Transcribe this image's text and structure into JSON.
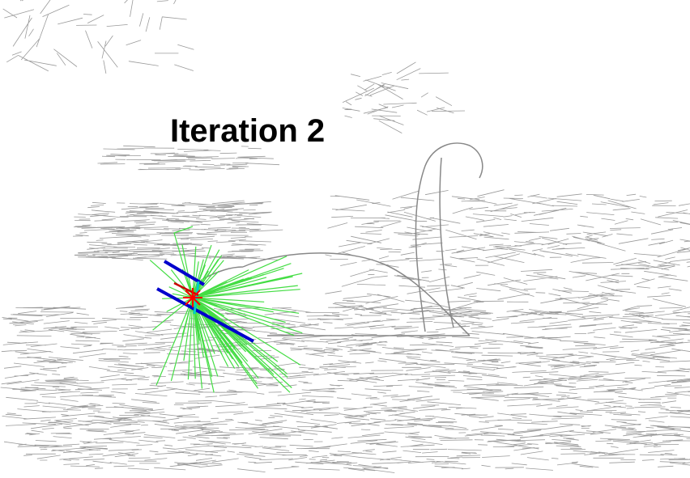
{
  "title": "Iteration 2"
}
